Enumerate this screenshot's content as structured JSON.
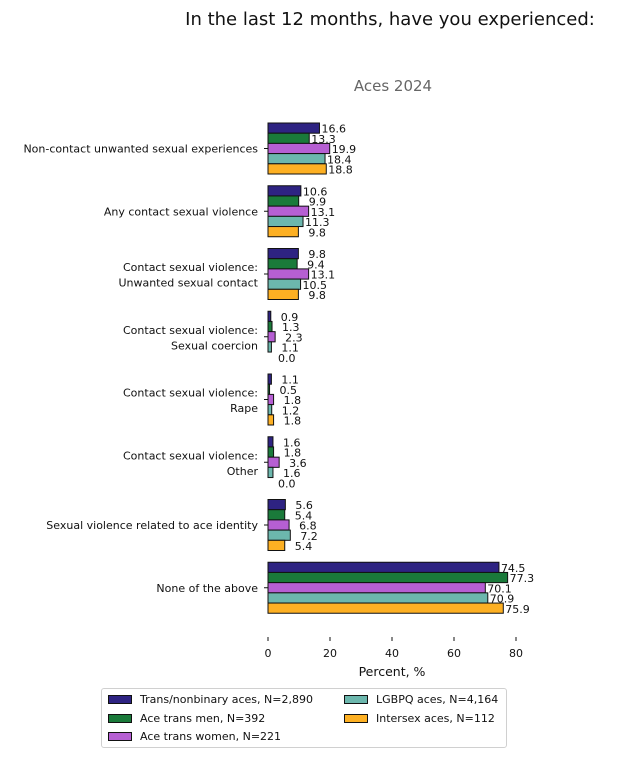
{
  "chart_data": {
    "type": "bar",
    "orientation": "horizontal",
    "title": "In the last 12 months, have you experienced:",
    "subtitle": "Aces 2024",
    "xlabel": "Percent, %",
    "ylabel": "",
    "xlim": [
      0,
      80
    ],
    "xticks": [
      "0",
      "20",
      "40",
      "60",
      "80"
    ],
    "grid": false,
    "legend_position": "bottom-center",
    "categories": [
      [
        "Non-contact unwanted sexual experiences"
      ],
      [
        "Any contact sexual violence"
      ],
      [
        "Contact sexual violence:",
        "Unwanted sexual contact"
      ],
      [
        "Contact sexual violence:",
        "Sexual coercion"
      ],
      [
        "Contact sexual violence:",
        "Rape"
      ],
      [
        "Contact sexual violence:",
        "Other"
      ],
      [
        "Sexual violence related to ace identity"
      ],
      [
        "None of the above"
      ]
    ],
    "series": [
      {
        "name": "Trans/nonbinary aces, N=2,890",
        "color": "#2e2382",
        "values": [
          16.6,
          10.6,
          9.8,
          0.9,
          1.1,
          1.6,
          5.6,
          74.5
        ],
        "labels": [
          "16.6",
          "10.6",
          "9.8",
          "0.9",
          "1.1",
          "1.6",
          "5.6",
          "74.5"
        ]
      },
      {
        "name": "Ace trans men, N=392",
        "color": "#1a7a3a",
        "values": [
          13.3,
          9.9,
          9.4,
          1.3,
          0.5,
          1.8,
          5.4,
          77.3
        ],
        "labels": [
          "13.3",
          "9.9",
          "9.4",
          "1.3",
          "0.5",
          "1.8",
          "5.4",
          "77.3"
        ]
      },
      {
        "name": "Ace trans women, N=221",
        "color": "#b65fd3",
        "values": [
          19.9,
          13.1,
          13.1,
          2.3,
          1.8,
          3.6,
          6.8,
          70.1
        ],
        "labels": [
          "19.9",
          "13.1",
          "13.1",
          "2.3",
          "1.8",
          "3.6",
          "6.8",
          "70.1"
        ]
      },
      {
        "name": "LGBPQ aces, N=4,164",
        "color": "#6cb7ad",
        "values": [
          18.4,
          11.3,
          10.5,
          1.1,
          1.2,
          1.6,
          7.2,
          70.9
        ],
        "labels": [
          "18.4",
          "11.3",
          "10.5",
          "1.1",
          "1.2",
          "1.6",
          "7.2",
          "70.9"
        ]
      },
      {
        "name": "Intersex aces, N=112",
        "color": "#fdb023",
        "values": [
          18.8,
          9.8,
          9.8,
          0.0,
          1.8,
          0.0,
          5.4,
          75.9
        ],
        "labels": [
          "18.8",
          "9.8",
          "9.8",
          "0.0",
          "1.8",
          "0.0",
          "5.4",
          "75.9"
        ]
      }
    ],
    "legend_layout": [
      [
        0,
        1,
        2
      ],
      [
        3,
        4
      ]
    ]
  }
}
